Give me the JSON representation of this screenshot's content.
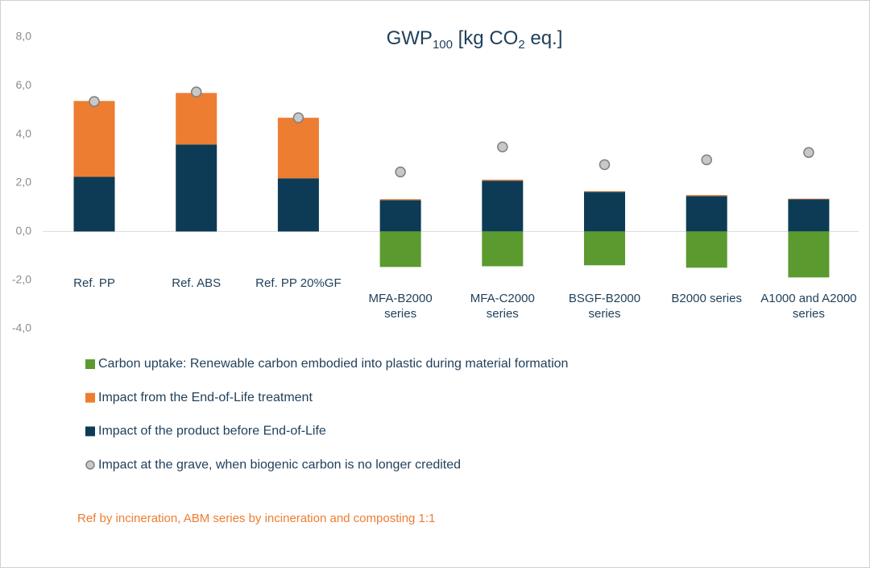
{
  "chart_data": {
    "type": "bar",
    "stacked": true,
    "title": [
      "GWP",
      "100",
      " [kg CO",
      "2",
      " eq.]"
    ],
    "categories": [
      "Ref. PP",
      "Ref. ABS",
      "Ref. PP 20%GF",
      "MFA-B2000 series",
      "MFA-C2000 series",
      "BSGF-B2000 series",
      "B2000 series",
      "A1000 and A2000 series"
    ],
    "series": [
      {
        "name": "Impact of the product before End-of-Life",
        "color": "#0d3b55",
        "values": [
          2.25,
          3.58,
          2.19,
          1.29,
          2.09,
          1.63,
          1.46,
          1.33
        ]
      },
      {
        "name": "Impact from the End-of-Life treatment",
        "color": "#ed7d31",
        "values": [
          3.12,
          2.12,
          2.49,
          0.04,
          0.04,
          0.03,
          0.04,
          0.02
        ]
      },
      {
        "name": "Carbon uptake: Renewable carbon embodied into plastic during material formation",
        "color": "#5b9a2e",
        "values": [
          0,
          0,
          0,
          -1.46,
          -1.43,
          -1.39,
          -1.49,
          -1.89
        ]
      },
      {
        "name": "Impact at the grave, when biogenic carbon is no longer credited",
        "color": "#c8c8c8",
        "type": "marker",
        "values": [
          5.35,
          5.74,
          4.68,
          2.45,
          3.48,
          2.75,
          2.95,
          3.25
        ]
      }
    ],
    "legend_order": [
      2,
      1,
      0,
      3
    ],
    "ylim": [
      -4,
      8
    ],
    "yticks": [
      {
        "value": -4,
        "label": "-4,0"
      },
      {
        "value": -2,
        "label": "-2,0"
      },
      {
        "value": 0,
        "label": "0,0"
      },
      {
        "value": 2,
        "label": "2,0"
      },
      {
        "value": 4,
        "label": "4,0"
      },
      {
        "value": 6,
        "label": "6,0"
      },
      {
        "value": 8,
        "label": "8,0"
      }
    ],
    "note": "Ref by incineration, ABM series by incineration and composting 1:1"
  }
}
